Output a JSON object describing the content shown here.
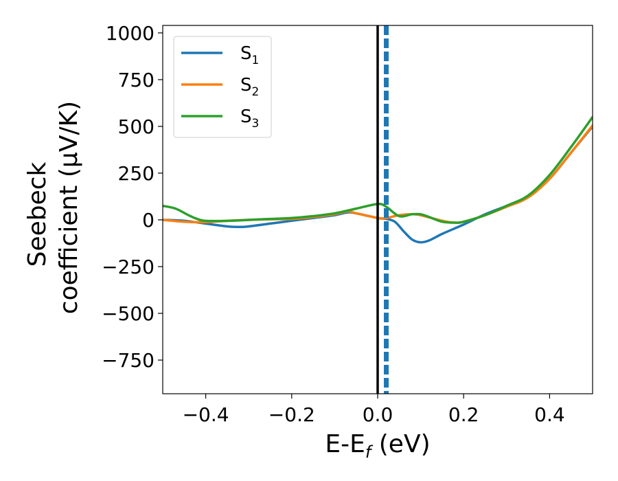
{
  "chart_data": {
    "type": "line",
    "xlabel": {
      "main": "E-E",
      "sub": "f",
      "rest": " (eV)"
    },
    "ylabel": {
      "line1": "Seebeck",
      "line2": "coefficient  (μV/K)"
    },
    "xlim": [
      -0.5,
      0.5
    ],
    "ylim": [
      -930,
      1040
    ],
    "xticks": [
      -0.4,
      -0.2,
      0.0,
      0.2,
      0.4
    ],
    "xtick_labels": [
      "−0.4",
      "−0.2",
      "0.0",
      "0.2",
      "0.4"
    ],
    "yticks": [
      -750,
      -500,
      -250,
      0,
      250,
      500,
      750,
      1000
    ],
    "ytick_labels": [
      "−750",
      "−500",
      "−250",
      "0",
      "250",
      "500",
      "750",
      "1000"
    ],
    "legend_position": "top-left",
    "vlines": [
      {
        "x": 0.0,
        "color": "#000000",
        "style": "solid"
      },
      {
        "x": 0.02,
        "color": "#1f77b4",
        "style": "dashed"
      }
    ],
    "series": [
      {
        "name": "S",
        "name_sub": "1",
        "color": "#1f77b4",
        "x": [
          -0.5,
          -0.45,
          -0.4,
          -0.35,
          -0.32,
          -0.3,
          -0.25,
          -0.2,
          -0.15,
          -0.1,
          -0.07,
          -0.05,
          0.0,
          0.02,
          0.04,
          0.06,
          0.08,
          0.1,
          0.12,
          0.15,
          0.2,
          0.25,
          0.3,
          0.35,
          0.4,
          0.45,
          0.5
        ],
        "y": [
          0,
          -5,
          -20,
          -35,
          -38,
          -35,
          -20,
          -5,
          10,
          25,
          40,
          35,
          10,
          5,
          -10,
          -60,
          -105,
          -120,
          -110,
          -75,
          -25,
          30,
          75,
          125,
          220,
          360,
          500
        ]
      },
      {
        "name": "S",
        "name_sub": "2",
        "color": "#ff7f0e",
        "x": [
          -0.5,
          -0.45,
          -0.4,
          -0.35,
          -0.3,
          -0.25,
          -0.2,
          -0.15,
          -0.1,
          -0.07,
          -0.05,
          0.0,
          0.02,
          0.05,
          0.08,
          0.1,
          0.15,
          0.18,
          0.2,
          0.25,
          0.3,
          0.35,
          0.4,
          0.45,
          0.5
        ],
        "y": [
          0,
          -10,
          -12,
          -5,
          0,
          3,
          5,
          15,
          30,
          45,
          35,
          10,
          10,
          25,
          30,
          25,
          -5,
          -15,
          -10,
          25,
          70,
          120,
          220,
          360,
          505
        ]
      },
      {
        "name": "S",
        "name_sub": "3",
        "color": "#2ca02c",
        "x": [
          -0.5,
          -0.47,
          -0.44,
          -0.42,
          -0.4,
          -0.35,
          -0.3,
          -0.25,
          -0.2,
          -0.15,
          -0.1,
          -0.05,
          0.0,
          0.02,
          0.05,
          0.08,
          0.1,
          0.12,
          0.15,
          0.18,
          0.2,
          0.25,
          0.3,
          0.35,
          0.4,
          0.45,
          0.5
        ],
        "y": [
          75,
          60,
          25,
          5,
          -5,
          -5,
          0,
          5,
          10,
          20,
          35,
          60,
          85,
          70,
          20,
          30,
          30,
          15,
          -10,
          -15,
          -10,
          25,
          75,
          130,
          240,
          390,
          550
        ]
      }
    ]
  }
}
